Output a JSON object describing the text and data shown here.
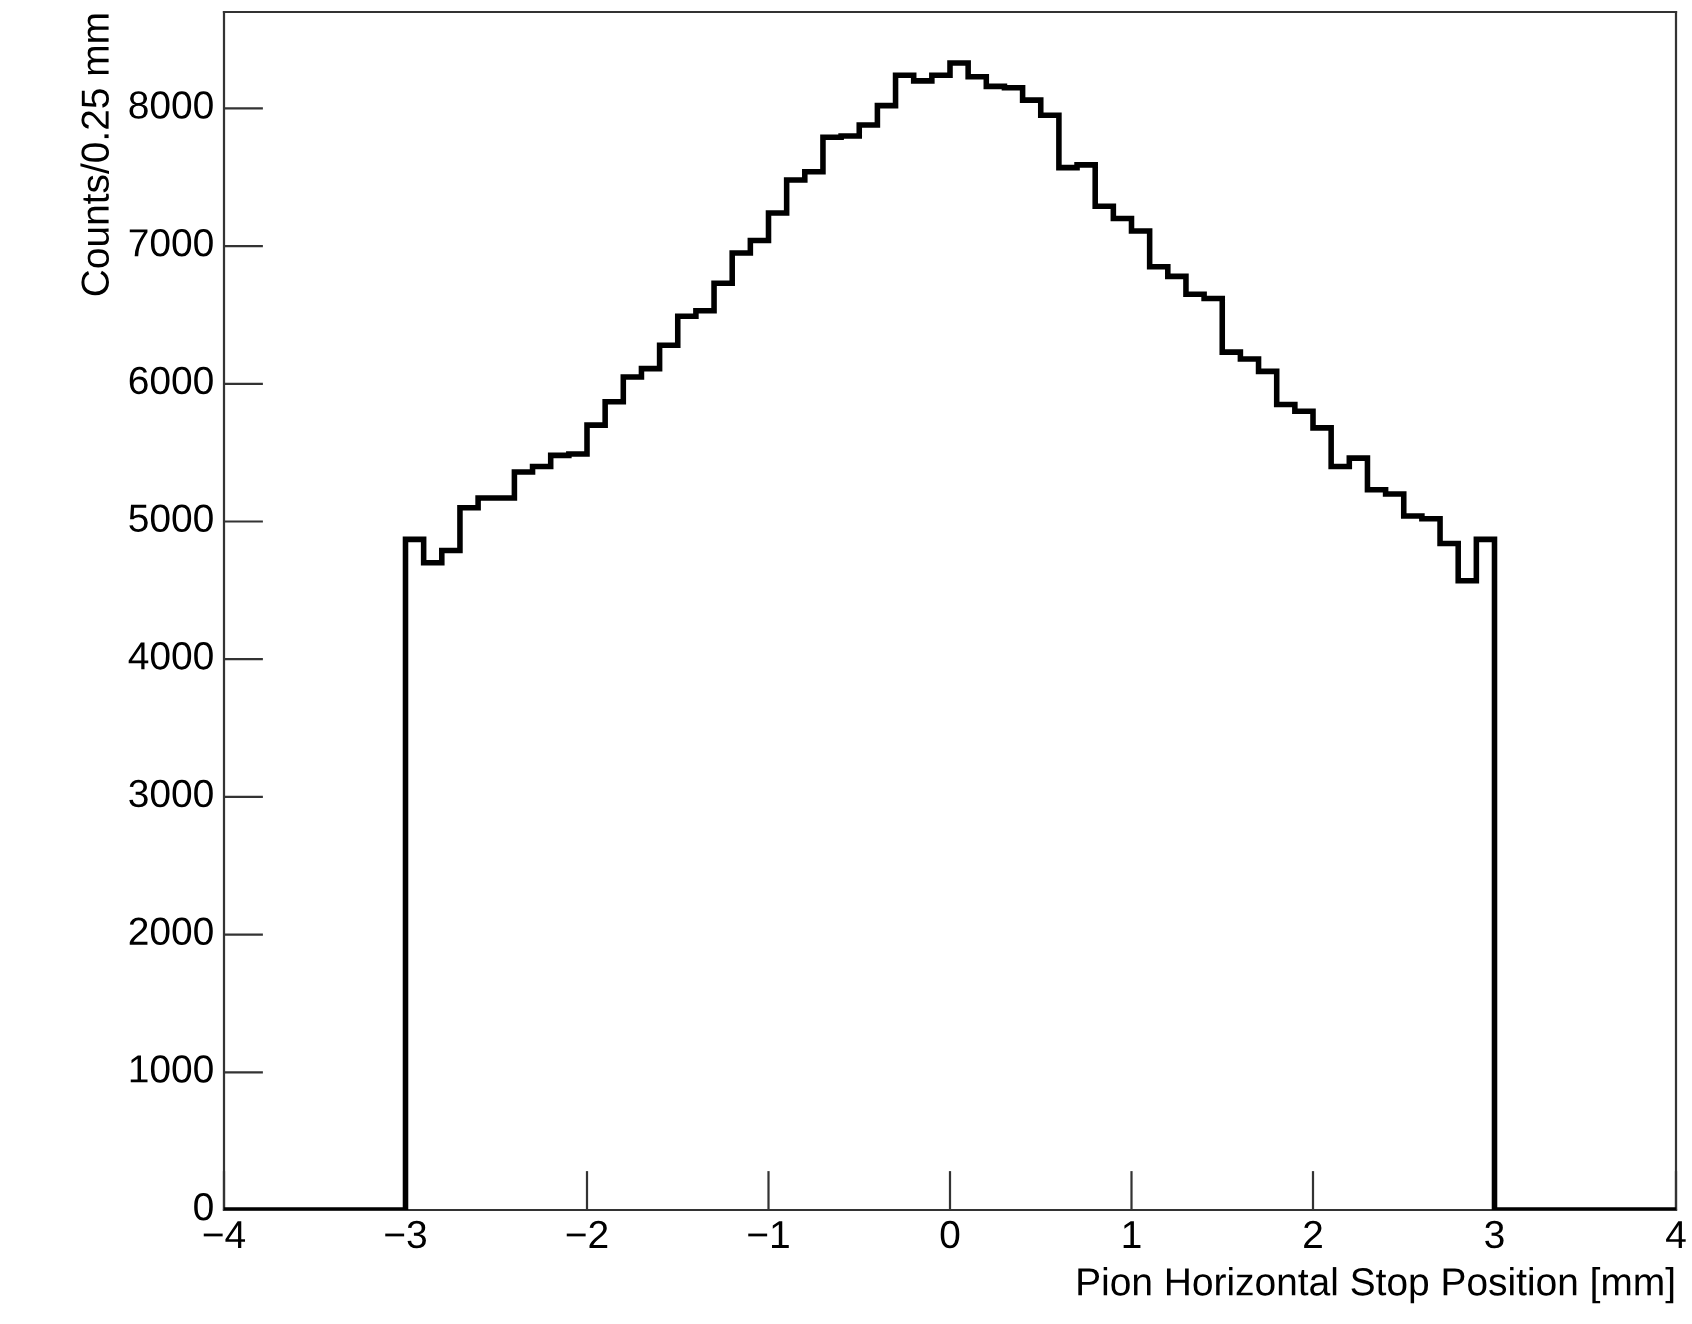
{
  "chart_data": {
    "type": "histogram",
    "xlabel": "Pion Horizontal Stop Position [mm]",
    "ylabel": "Counts/0.25 mm",
    "bins": [
      -4.0,
      -3.0,
      -2.9,
      -2.8,
      -2.7,
      -2.6,
      -2.5,
      -2.4,
      -2.3,
      -2.2,
      -2.1,
      -2.0,
      -1.9,
      -1.8,
      -1.7,
      -1.6,
      -1.5,
      -1.4,
      -1.3,
      -1.2,
      -1.1,
      -1.0,
      -0.9,
      -0.8,
      -0.7,
      -0.6,
      -0.5,
      -0.4,
      -0.3,
      -0.2,
      -0.1,
      0.0,
      0.1,
      0.2,
      0.3,
      0.4,
      0.5,
      0.6,
      0.7,
      0.8,
      0.9,
      1.0,
      1.1,
      1.2,
      1.3,
      1.4,
      1.5,
      1.6,
      1.7,
      1.8,
      1.9,
      2.0,
      2.1,
      2.2,
      2.3,
      2.4,
      2.5,
      2.6,
      2.7,
      2.8,
      2.9,
      3.0,
      4.0
    ],
    "values": [
      0,
      4870,
      4700,
      4790,
      5100,
      5170,
      5170,
      5360,
      5400,
      5480,
      5490,
      5700,
      5870,
      6050,
      6110,
      6280,
      6490,
      6530,
      6730,
      6950,
      7040,
      7240,
      7480,
      7540,
      7790,
      7800,
      7880,
      8020,
      8240,
      8200,
      8240,
      8330,
      8230,
      8160,
      8150,
      8060,
      7950,
      7570,
      7590,
      7290,
      7200,
      7110,
      6850,
      6780,
      6650,
      6620,
      6230,
      6180,
      6090,
      5850,
      5800,
      5680,
      5400,
      5460,
      5230,
      5200,
      5040,
      5020,
      4840,
      4570,
      4870,
      0
    ],
    "color": "#000000",
    "xlim": [
      -4,
      4
    ],
    "xticks": [
      {
        "value": -4,
        "label": "−4"
      },
      {
        "value": -3,
        "label": "−3"
      },
      {
        "value": -2,
        "label": "−2"
      },
      {
        "value": -1,
        "label": "−1"
      },
      0,
      1,
      2,
      3,
      4
    ],
    "ylim": [
      0,
      8700
    ],
    "yticks": [
      0,
      1000,
      2000,
      3000,
      4000,
      5000,
      6000,
      7000,
      8000
    ],
    "grid": false,
    "legend": false
  }
}
